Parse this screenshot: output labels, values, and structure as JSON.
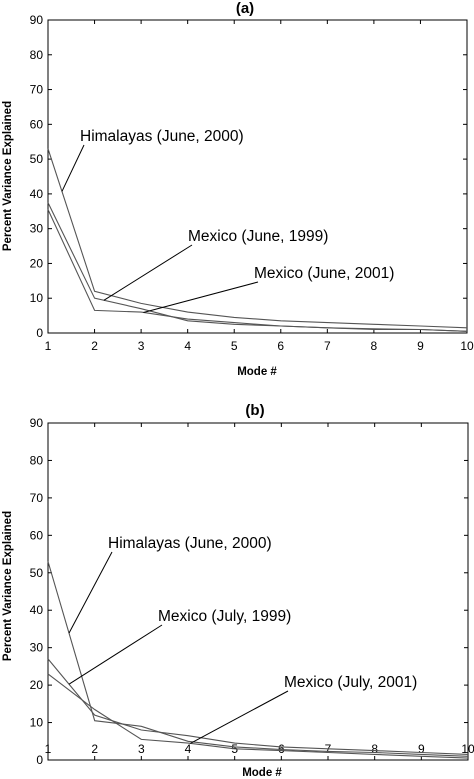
{
  "chart_data": [
    {
      "type": "line",
      "title": "(a)",
      "xlabel": "Mode #",
      "ylabel": "Percent Variance Explained",
      "xlim": [
        1,
        10
      ],
      "ylim": [
        0,
        90
      ],
      "xticks": [
        1,
        2,
        3,
        4,
        5,
        6,
        7,
        8,
        9,
        10
      ],
      "yticks": [
        0,
        10,
        20,
        30,
        40,
        50,
        60,
        70,
        80,
        90
      ],
      "grid": false,
      "series": [
        {
          "name": "Himalayas (June, 2000)",
          "x": [
            1,
            2,
            3,
            4,
            5,
            6,
            7,
            8,
            9,
            10
          ],
          "values": [
            53,
            12,
            8.5,
            6,
            4.5,
            3.5,
            3,
            2.5,
            2,
            1.5
          ]
        },
        {
          "name": "Mexico (June, 1999)",
          "x": [
            1,
            2,
            3,
            4,
            5,
            6,
            7,
            8,
            9,
            10
          ],
          "values": [
            37.5,
            10,
            7,
            3.5,
            2.5,
            2,
            1.5,
            1,
            1,
            0.5
          ]
        },
        {
          "name": "Mexico (June, 2001)",
          "x": [
            1,
            2,
            3,
            4,
            5,
            6,
            7,
            8,
            9,
            10
          ],
          "values": [
            35.5,
            6.5,
            6,
            4,
            3,
            2,
            1.5,
            1.2,
            1,
            0.5
          ]
        }
      ],
      "annotations": [
        {
          "text": "Himalayas (June, 2000)",
          "series": 0,
          "point_x": 1.3
        },
        {
          "text": "Mexico (June, 1999)",
          "series": 1,
          "point_x": 2.2
        },
        {
          "text": "Mexico (June, 2001)",
          "series": 2,
          "point_x": 3.05
        }
      ]
    },
    {
      "type": "line",
      "title": "(b)",
      "xlabel": "Mode #",
      "ylabel": "Percent Variance Explained",
      "xlim": [
        1,
        10
      ],
      "ylim": [
        0,
        90
      ],
      "xticks": [
        1,
        2,
        3,
        4,
        5,
        6,
        7,
        8,
        9,
        10
      ],
      "yticks": [
        0,
        10,
        20,
        30,
        40,
        50,
        60,
        70,
        80,
        90
      ],
      "grid": false,
      "series": [
        {
          "name": "Himalayas (June, 2000)",
          "x": [
            1,
            2,
            3,
            4,
            5,
            6,
            7,
            8,
            9,
            10
          ],
          "values": [
            53,
            10.5,
            9,
            5,
            3.5,
            2.8,
            2.3,
            2,
            1.5,
            1
          ]
        },
        {
          "name": "Mexico (July, 1999)",
          "x": [
            1,
            2,
            3,
            4,
            5,
            6,
            7,
            8,
            9,
            10
          ],
          "values": [
            27,
            12,
            8,
            6.5,
            4.5,
            3.5,
            3,
            2.5,
            2,
            1.5
          ]
        },
        {
          "name": "Mexico (July, 2001)",
          "x": [
            1,
            2,
            3,
            4,
            5,
            6,
            7,
            8,
            9,
            10
          ],
          "values": [
            23,
            13.5,
            5.5,
            4.5,
            3,
            2.5,
            2,
            1.5,
            1,
            0.5
          ]
        }
      ],
      "annotations": [
        {
          "text": "Himalayas (June, 2000)",
          "series": 0,
          "point_x": 1.45
        },
        {
          "text": "Mexico (July, 1999)",
          "series": 1,
          "point_x": 1.45
        },
        {
          "text": "Mexico (July, 2001)",
          "series": 2,
          "point_x": 4.05
        }
      ]
    }
  ]
}
